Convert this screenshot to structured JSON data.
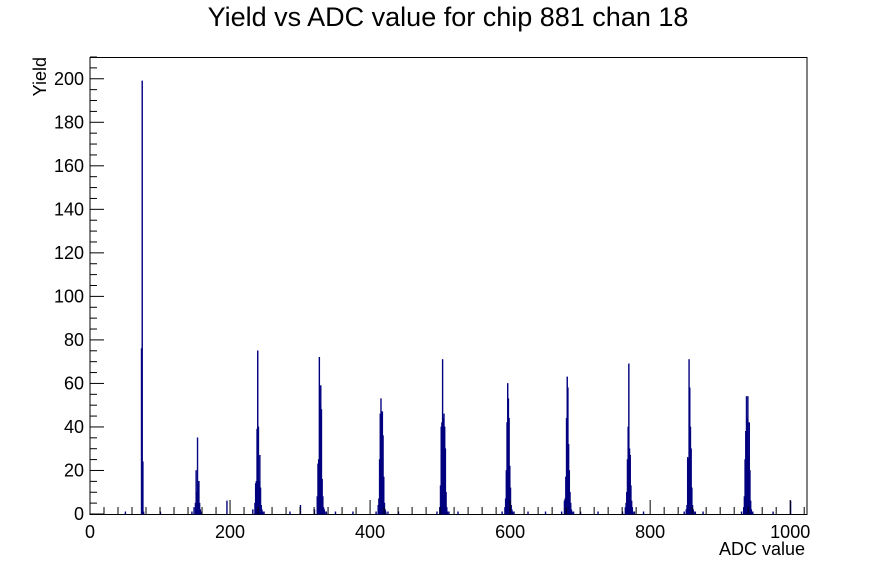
{
  "chart_data": {
    "type": "bar",
    "title": "Yield vs ADC value for chip 881 chan 18",
    "xlabel": "ADC value",
    "ylabel": "Yield",
    "xlim": [
      0,
      1024
    ],
    "ylim": [
      0,
      210
    ],
    "x_ticks": [
      0,
      200,
      400,
      600,
      800,
      1000
    ],
    "y_ticks": [
      0,
      20,
      40,
      60,
      80,
      100,
      120,
      140,
      160,
      180,
      200
    ],
    "grid": false,
    "color": "#00007f",
    "series": [
      {
        "x": [
          50,
          73,
          74,
          75,
          76,
          100,
          145,
          148,
          150,
          151,
          152,
          153,
          154,
          155,
          156,
          157,
          158,
          195,
          232,
          235,
          236,
          237,
          238,
          239,
          240,
          241,
          242,
          243,
          244,
          245,
          246,
          248,
          285,
          300,
          320,
          324,
          325,
          326,
          327,
          328,
          329,
          330,
          331,
          332,
          333,
          334,
          335,
          337,
          350,
          375,
          408,
          411,
          412,
          413,
          414,
          415,
          416,
          417,
          418,
          419,
          420,
          421,
          422,
          425,
          440,
          495,
          499,
          500,
          501,
          502,
          503,
          504,
          505,
          506,
          507,
          508,
          509,
          510,
          512,
          525,
          588,
          592,
          593,
          594,
          595,
          596,
          597,
          598,
          599,
          600,
          601,
          602,
          603,
          605,
          625,
          650,
          673,
          677,
          678,
          679,
          680,
          681,
          682,
          683,
          684,
          685,
          686,
          687,
          688,
          690,
          700,
          725,
          760,
          764,
          765,
          766,
          767,
          768,
          769,
          770,
          771,
          772,
          773,
          774,
          775,
          777,
          790,
          848,
          851,
          852,
          853,
          854,
          855,
          856,
          857,
          858,
          859,
          860,
          861,
          862,
          864,
          875,
          930,
          933,
          934,
          935,
          936,
          937,
          938,
          939,
          940,
          941,
          942,
          943,
          944,
          946,
          975,
          1000
        ],
        "y": [
          1,
          76,
          199,
          24,
          1,
          1,
          1,
          3,
          5,
          20,
          10,
          35,
          15,
          15,
          5,
          2,
          1,
          6,
          2,
          5,
          14,
          15,
          39,
          75,
          40,
          15,
          27,
          12,
          4,
          2,
          1,
          1,
          1,
          4,
          2,
          8,
          23,
          25,
          72,
          50,
          59,
          48,
          16,
          8,
          3,
          2,
          1,
          1,
          1,
          1,
          1,
          4,
          7,
          25,
          46,
          53,
          47,
          47,
          36,
          17,
          5,
          2,
          1,
          1,
          1,
          1,
          3,
          13,
          40,
          42,
          71,
          44,
          46,
          40,
          30,
          10,
          3,
          1,
          1,
          1,
          1,
          3,
          7,
          20,
          42,
          60,
          53,
          44,
          22,
          12,
          4,
          2,
          1,
          1,
          1,
          1,
          1,
          6,
          7,
          17,
          44,
          63,
          58,
          32,
          20,
          10,
          5,
          2,
          1,
          1,
          1,
          1,
          1,
          3,
          5,
          10,
          25,
          40,
          69,
          30,
          27,
          13,
          6,
          3,
          1,
          1,
          1,
          1,
          2,
          4,
          26,
          25,
          71,
          58,
          40,
          30,
          12,
          4,
          2,
          1,
          1,
          1,
          1,
          3,
          8,
          25,
          38,
          54,
          44,
          54,
          27,
          42,
          20,
          6,
          2,
          1,
          1,
          6
        ]
      }
    ]
  }
}
